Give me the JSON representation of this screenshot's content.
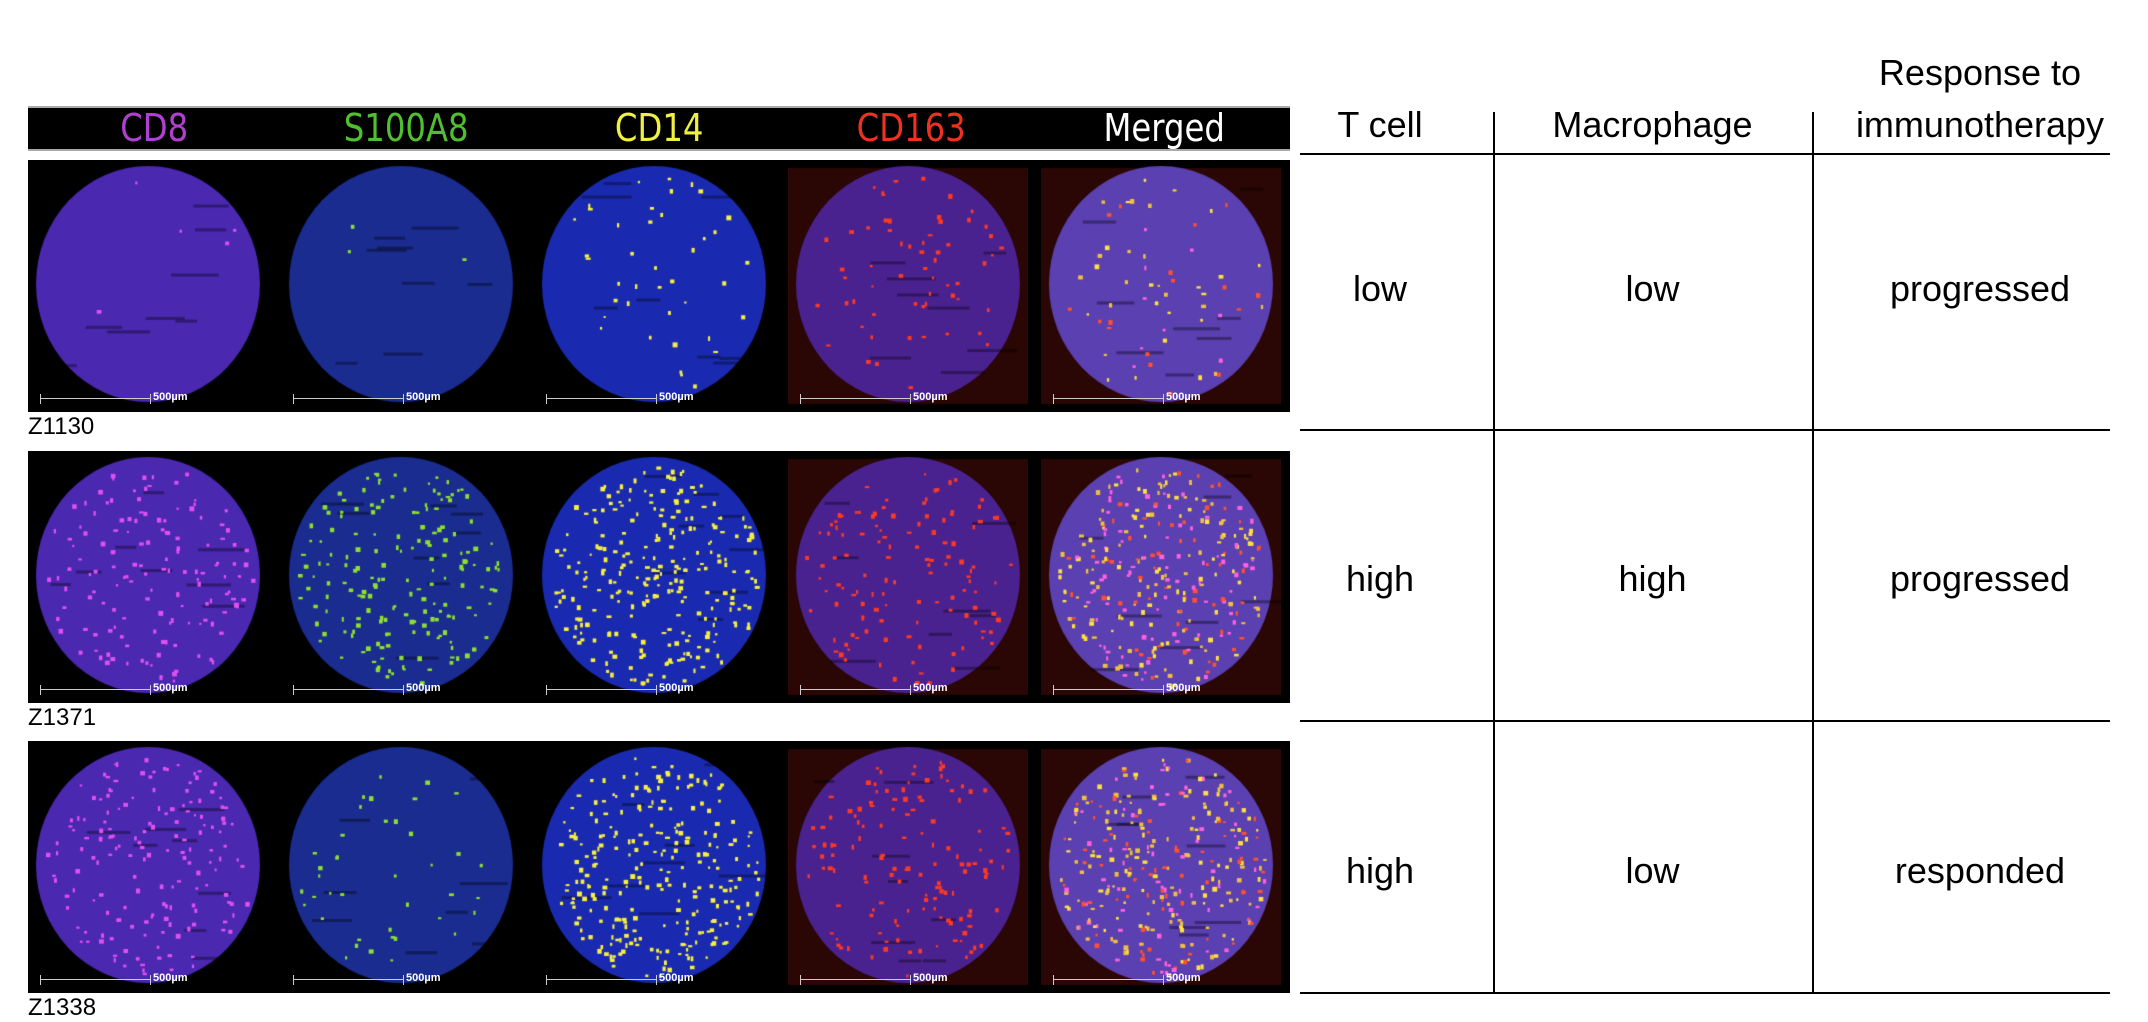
{
  "figure": {
    "channels": [
      {
        "label": "CD8",
        "color": "#b040d0"
      },
      {
        "label": "S100A8",
        "color": "#50c030"
      },
      {
        "label": "CD14",
        "color": "#f0f040"
      },
      {
        "label": "CD163",
        "color": "#f03020"
      },
      {
        "label": "Merged",
        "color": "#ffffff"
      }
    ],
    "scale_bar_label": "500µm",
    "samples": [
      {
        "id": "Z1130"
      },
      {
        "id": "Z1371"
      },
      {
        "id": "Z1338"
      }
    ]
  },
  "table": {
    "headers": {
      "t_cell": "T cell",
      "macrophage": "Macrophage",
      "response_line1": "Response to",
      "response_line2": "immunotherapy"
    },
    "rows": [
      {
        "t_cell": "low",
        "macrophage": "low",
        "response": "progressed"
      },
      {
        "t_cell": "high",
        "macrophage": "high",
        "response": "progressed"
      },
      {
        "t_cell": "high",
        "macrophage": "low",
        "response": "responded"
      }
    ]
  }
}
